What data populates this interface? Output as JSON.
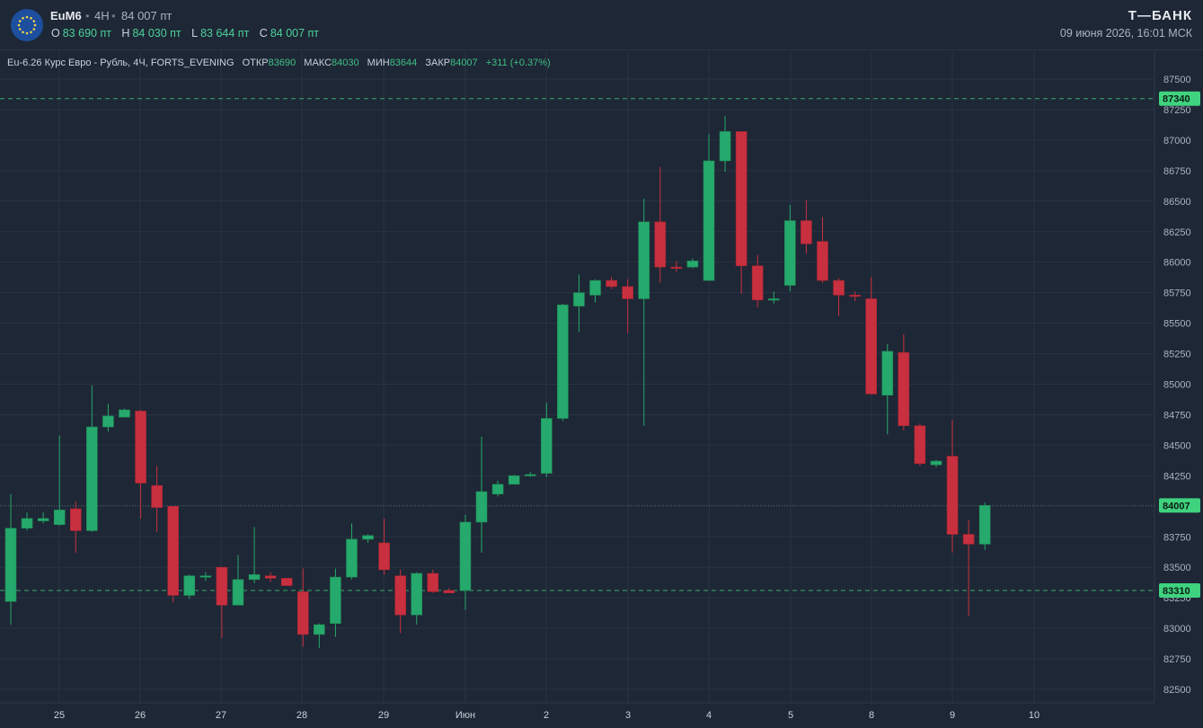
{
  "header": {
    "ticker": "EuM6",
    "interval": "4H",
    "last_price": "84 007 пт",
    "ohlc": {
      "o_label": "O",
      "o_value": "83 690 пт",
      "h_label": "H",
      "h_value": "84 030 пт",
      "l_label": "L",
      "l_value": "83 644 пт",
      "c_label": "C",
      "c_value": "84 007 пт"
    },
    "brand": "Т—БАНК",
    "datetime": "09 июня 2026, 16:01 МСК"
  },
  "legend": {
    "title": "Eu-6.26 Курс Евро - Рубль, 4Ч, FORTS_EVENING",
    "open_label": "ОТКР",
    "open_value": "83690",
    "high_label": "МАКС",
    "high_value": "84030",
    "low_label": "МИН",
    "low_value": "83644",
    "close_label": "ЗАКР",
    "close_value": "84007",
    "change": "+311 (+0.37%)"
  },
  "colors": {
    "up": "#26a96c",
    "down": "#c8303f",
    "price_tag": "#3fd37f",
    "background": "#1e2735"
  },
  "chart_data": {
    "type": "candlestick",
    "y_ticks": [
      82500,
      82750,
      83000,
      83250,
      83500,
      83750,
      84000,
      84250,
      84500,
      84750,
      85000,
      85250,
      85500,
      85750,
      86000,
      86250,
      86500,
      86750,
      87000,
      87250,
      87500
    ],
    "x_labels": [
      "25",
      "26",
      "27",
      "28",
      "29",
      "Июн",
      "2",
      "3",
      "4",
      "5",
      "8",
      "9",
      "10"
    ],
    "price_lines": [
      {
        "value": 87340,
        "label": "87340",
        "style": "dashed"
      },
      {
        "value": 84007,
        "label": "84007",
        "style": "dotted"
      },
      {
        "value": 83310,
        "label": "83310",
        "style": "dashed"
      }
    ],
    "candles": [
      {
        "o": 83220,
        "h": 84100,
        "l": 83030,
        "c": 83820
      },
      {
        "o": 83820,
        "h": 83950,
        "l": 83800,
        "c": 83900
      },
      {
        "o": 83880,
        "h": 83950,
        "l": 83860,
        "c": 83900
      },
      {
        "o": 83850,
        "h": 84580,
        "l": 83840,
        "c": 83970
      },
      {
        "o": 83980,
        "h": 84040,
        "l": 83620,
        "c": 83800
      },
      {
        "o": 83800,
        "h": 84990,
        "l": 83790,
        "c": 84650
      },
      {
        "o": 84650,
        "h": 84840,
        "l": 84610,
        "c": 84740
      },
      {
        "o": 84730,
        "h": 84800,
        "l": 84730,
        "c": 84790
      },
      {
        "o": 84780,
        "h": 84790,
        "l": 83900,
        "c": 84190
      },
      {
        "o": 84170,
        "h": 84330,
        "l": 83790,
        "c": 83990
      },
      {
        "o": 84000,
        "h": 84000,
        "l": 83210,
        "c": 83270
      },
      {
        "o": 83270,
        "h": 83440,
        "l": 83240,
        "c": 83430
      },
      {
        "o": 83430,
        "h": 83460,
        "l": 83390,
        "c": 83430
      },
      {
        "o": 83500,
        "h": 83500,
        "l": 82920,
        "c": 83190
      },
      {
        "o": 83190,
        "h": 83600,
        "l": 83200,
        "c": 83400
      },
      {
        "o": 83400,
        "h": 83830,
        "l": 83370,
        "c": 83440
      },
      {
        "o": 83430,
        "h": 83460,
        "l": 83380,
        "c": 83410
      },
      {
        "o": 83410,
        "h": 83400,
        "l": 83350,
        "c": 83350
      },
      {
        "o": 83300,
        "h": 83490,
        "l": 82850,
        "c": 82950
      },
      {
        "o": 82950,
        "h": 83040,
        "l": 82840,
        "c": 83030
      },
      {
        "o": 83040,
        "h": 83490,
        "l": 82930,
        "c": 83420
      },
      {
        "o": 83420,
        "h": 83860,
        "l": 83400,
        "c": 83730
      },
      {
        "o": 83730,
        "h": 83770,
        "l": 83700,
        "c": 83760
      },
      {
        "o": 83700,
        "h": 83900,
        "l": 83440,
        "c": 83480
      },
      {
        "o": 83430,
        "h": 83480,
        "l": 82960,
        "c": 83110
      },
      {
        "o": 83110,
        "h": 83460,
        "l": 83030,
        "c": 83450
      },
      {
        "o": 83450,
        "h": 83480,
        "l": 83290,
        "c": 83300
      },
      {
        "o": 83310,
        "h": 83330,
        "l": 83290,
        "c": 83290
      },
      {
        "o": 83310,
        "h": 83930,
        "l": 83150,
        "c": 83870
      },
      {
        "o": 83870,
        "h": 84570,
        "l": 83620,
        "c": 84120
      },
      {
        "o": 84100,
        "h": 84210,
        "l": 84080,
        "c": 84180
      },
      {
        "o": 84180,
        "h": 84260,
        "l": 84200,
        "c": 84250
      },
      {
        "o": 84250,
        "h": 84280,
        "l": 84240,
        "c": 84260
      },
      {
        "o": 84270,
        "h": 84850,
        "l": 84240,
        "c": 84720
      },
      {
        "o": 84720,
        "h": 85660,
        "l": 84700,
        "c": 85650
      },
      {
        "o": 85640,
        "h": 85900,
        "l": 85430,
        "c": 85750
      },
      {
        "o": 85730,
        "h": 85860,
        "l": 85670,
        "c": 85850
      },
      {
        "o": 85850,
        "h": 85880,
        "l": 85780,
        "c": 85800
      },
      {
        "o": 85800,
        "h": 85860,
        "l": 85420,
        "c": 85700
      },
      {
        "o": 85700,
        "h": 86520,
        "l": 84660,
        "c": 86330
      },
      {
        "o": 86330,
        "h": 86780,
        "l": 85830,
        "c": 85960
      },
      {
        "o": 85960,
        "h": 86010,
        "l": 85920,
        "c": 85950
      },
      {
        "o": 85960,
        "h": 86030,
        "l": 85950,
        "c": 86010
      },
      {
        "o": 85850,
        "h": 87050,
        "l": 85850,
        "c": 86830
      },
      {
        "o": 86830,
        "h": 87200,
        "l": 86740,
        "c": 87070
      },
      {
        "o": 87070,
        "h": 87070,
        "l": 85740,
        "c": 85970
      },
      {
        "o": 85970,
        "h": 86060,
        "l": 85630,
        "c": 85690
      },
      {
        "o": 85700,
        "h": 85760,
        "l": 85660,
        "c": 85700
      },
      {
        "o": 85810,
        "h": 86470,
        "l": 85760,
        "c": 86340
      },
      {
        "o": 86340,
        "h": 86510,
        "l": 86070,
        "c": 86150
      },
      {
        "o": 86170,
        "h": 86370,
        "l": 85830,
        "c": 85850
      },
      {
        "o": 85850,
        "h": 85870,
        "l": 85560,
        "c": 85730
      },
      {
        "o": 85730,
        "h": 85760,
        "l": 85680,
        "c": 85720
      },
      {
        "o": 85700,
        "h": 85880,
        "l": 84960,
        "c": 84920
      },
      {
        "o": 84910,
        "h": 85330,
        "l": 84590,
        "c": 85270
      },
      {
        "o": 85260,
        "h": 85410,
        "l": 84620,
        "c": 84660
      },
      {
        "o": 84660,
        "h": 84680,
        "l": 84330,
        "c": 84350
      },
      {
        "o": 84340,
        "h": 84380,
        "l": 84320,
        "c": 84370
      },
      {
        "o": 84410,
        "h": 84710,
        "l": 83620,
        "c": 83770
      },
      {
        "o": 83770,
        "h": 83890,
        "l": 83100,
        "c": 83690
      },
      {
        "o": 83690,
        "h": 84030,
        "l": 83644,
        "c": 84007
      }
    ]
  }
}
